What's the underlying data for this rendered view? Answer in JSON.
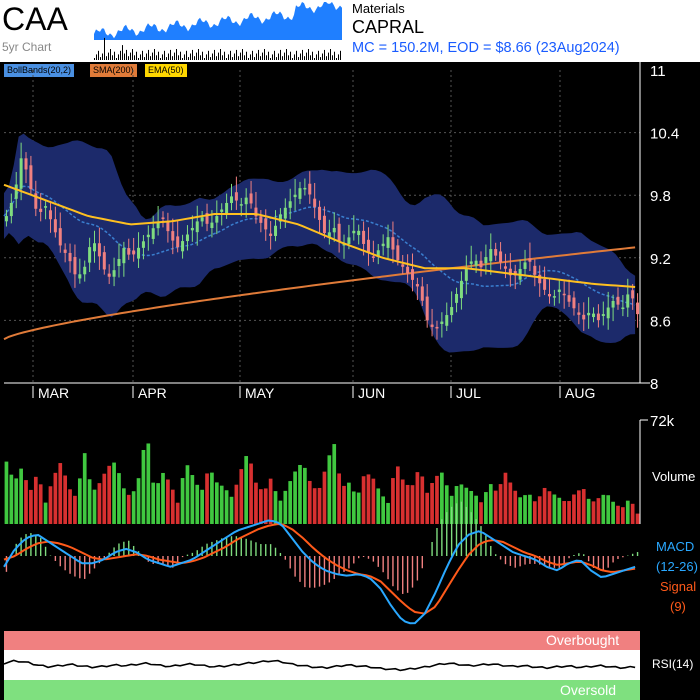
{
  "header": {
    "ticker": "CAA",
    "mini_label": "5yr Chart",
    "sector": "Materials",
    "company": "CAPRAL",
    "summary": "MC = 150.2M, EOD = $8.66 (23Aug2024)"
  },
  "legend": [
    {
      "label": "BollBands(20,2)",
      "color": "#4a90e2"
    },
    {
      "label": "SMA(200)",
      "color": "#e07b39"
    },
    {
      "label": "EMA(50)",
      "color": "#ffd700"
    }
  ],
  "colors": {
    "up": "#7fdc7f",
    "down": "#f08080",
    "band": "#1c2a6b",
    "sma200": "#e07b39",
    "ema50": "#ffc020",
    "bbmid": "#3a7fd0",
    "macd": "#2aa8ff",
    "signal": "#ff5a1a",
    "volume_up": "#40c840",
    "volume_down": "#d83030",
    "overbought": "#f08080",
    "oversold": "#7fe07f"
  },
  "chart_data": [
    {
      "type": "candlestick",
      "y_ticks": [
        "11",
        "10.4",
        "9.8",
        "9.2",
        "8.6",
        "8"
      ],
      "ylim": [
        8,
        11
      ],
      "months": [
        "MAR",
        "APR",
        "MAY",
        "JUN",
        "JUL",
        "AUG"
      ],
      "last_close": 8.66,
      "close_path": [
        9.6,
        9.8,
        10.2,
        9.9,
        9.6,
        9.7,
        9.5,
        9.3,
        9.2,
        9.0,
        9.1,
        9.4,
        9.2,
        9.0,
        9.1,
        9.3,
        9.2,
        9.3,
        9.4,
        9.5,
        9.6,
        9.4,
        9.3,
        9.4,
        9.5,
        9.6,
        9.5,
        9.6,
        9.7,
        9.8,
        9.7,
        9.8,
        9.6,
        9.5,
        9.4,
        9.6,
        9.7,
        9.8,
        9.9,
        9.8,
        9.6,
        9.4,
        9.5,
        9.3,
        9.4,
        9.5,
        9.3,
        9.2,
        9.3,
        9.4,
        9.2,
        9.1,
        9.0,
        8.9,
        8.6,
        8.5,
        8.6,
        8.7,
        8.9,
        9.1,
        9.2,
        9.1,
        9.3,
        9.2,
        9.1,
        9.0,
        9.1,
        9.2,
        9.0,
        8.9,
        8.8,
        8.9,
        8.8,
        8.7,
        8.6,
        8.7,
        8.6,
        8.7,
        8.8,
        8.7,
        8.9,
        8.66
      ],
      "sma200": {
        "start": 8.42,
        "end": 9.3
      },
      "ema50": [
        9.9,
        9.75,
        9.6,
        9.52,
        9.55,
        9.62,
        9.62,
        9.52,
        9.35,
        9.2,
        9.1,
        9.1,
        9.05,
        9.0,
        8.95,
        8.92
      ]
    },
    {
      "type": "bar",
      "name": "Volume",
      "y_tick": "72k",
      "values": [
        0.6,
        0.4,
        0.55,
        0.3,
        0.5,
        0.2,
        0.45,
        0.6,
        0.35,
        0.25,
        0.7,
        0.3,
        0.4,
        0.55,
        0.6,
        0.35,
        0.25,
        0.45,
        0.9,
        0.3,
        0.5,
        0.4,
        0.2,
        0.6,
        0.45,
        0.3,
        0.55,
        0.4,
        0.35,
        0.25,
        0.5,
        0.7,
        0.4,
        0.3,
        0.45,
        0.2,
        0.35,
        0.5,
        0.6,
        0.4,
        0.3,
        0.55,
        0.8,
        0.35,
        0.4,
        0.25,
        0.5,
        0.45,
        0.3,
        0.2,
        0.6,
        0.4,
        0.35,
        0.55,
        0.3,
        0.45,
        0.5,
        0.25,
        0.4,
        0.35,
        0.3,
        0.2,
        0.4,
        0.3,
        0.5,
        0.35,
        0.25,
        0.3,
        0.2,
        0.35,
        0.3,
        0.25,
        0.2,
        0.3,
        0.35,
        0.2,
        0.25,
        0.3,
        0.2,
        0.15,
        0.25,
        0.1
      ]
    },
    {
      "type": "line",
      "name": "MACD",
      "title": "MACD",
      "params": "(12-26)",
      "signal_label": "Signal",
      "signal_params": "(9)",
      "macd": [
        -0.3,
        0.2,
        0.5,
        0.6,
        0.4,
        0.2,
        0.0,
        -0.2,
        -0.2,
        -0.1,
        0.1,
        0.2,
        0.1,
        -0.1,
        -0.2,
        -0.3,
        -0.2,
        -0.1,
        0.1,
        0.3,
        0.5,
        0.7,
        0.8,
        0.9,
        1.0,
        0.9,
        0.5,
        0.1,
        -0.2,
        -0.4,
        -0.5,
        -0.55,
        -0.5,
        -0.6,
        -0.9,
        -1.4,
        -1.8,
        -1.9,
        -1.6,
        -1.0,
        -0.3,
        0.3,
        0.6,
        0.7,
        0.5,
        0.3,
        0.1,
        0.0,
        -0.1,
        -0.3,
        -0.4,
        -0.2,
        -0.1,
        -0.4,
        -0.6,
        -0.5,
        -0.4,
        -0.3
      ],
      "signal": [
        -0.1,
        0.0,
        0.2,
        0.35,
        0.4,
        0.35,
        0.25,
        0.1,
        -0.05,
        -0.1,
        -0.05,
        0.0,
        0.05,
        0.0,
        -0.1,
        -0.15,
        -0.2,
        -0.15,
        -0.05,
        0.1,
        0.25,
        0.45,
        0.6,
        0.75,
        0.85,
        0.9,
        0.75,
        0.5,
        0.2,
        -0.05,
        -0.25,
        -0.4,
        -0.5,
        -0.55,
        -0.7,
        -1.0,
        -1.3,
        -1.55,
        -1.6,
        -1.4,
        -0.9,
        -0.4,
        0.05,
        0.35,
        0.45,
        0.4,
        0.25,
        0.1,
        0.0,
        -0.15,
        -0.25,
        -0.2,
        -0.15,
        -0.25,
        -0.4,
        -0.45,
        -0.4,
        -0.35
      ]
    },
    {
      "type": "line",
      "name": "RSI(14)",
      "title": "RSI(14)",
      "overbought_label": "Overbought",
      "oversold_label": "Oversold",
      "values": [
        55,
        62,
        58,
        50,
        45,
        48,
        52,
        47,
        44,
        46,
        50,
        48,
        52,
        55,
        49,
        46,
        50,
        53,
        48,
        45,
        47,
        51,
        55,
        58,
        62,
        60,
        52,
        48,
        44,
        42,
        46,
        50,
        47,
        45,
        40,
        38,
        36,
        40,
        44,
        50,
        55,
        52,
        48,
        50,
        53,
        49,
        46,
        48,
        44,
        42,
        45,
        47,
        43,
        46,
        48,
        44,
        42,
        45
      ]
    }
  ]
}
